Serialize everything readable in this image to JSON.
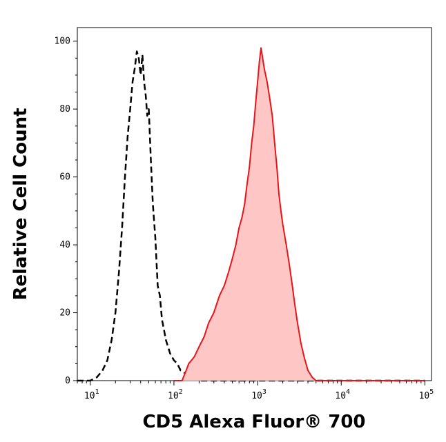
{
  "chart_data": {
    "type": "area",
    "xlabel": "CD5 Alexa Fluor® 700",
    "ylabel": "Relative Cell Count",
    "xscale": "log",
    "xlim": [
      7,
      120000
    ],
    "ylim": [
      0,
      104
    ],
    "x_ticks": [
      {
        "base": "10",
        "exp": "1",
        "value": 10
      },
      {
        "base": "10",
        "exp": "2",
        "value": 100
      },
      {
        "base": "10",
        "exp": "3",
        "value": 1000
      },
      {
        "base": "10",
        "exp": "4",
        "value": 10000
      },
      {
        "base": "10",
        "exp": "5",
        "value": 100000
      }
    ],
    "y_ticks": [
      0,
      20,
      40,
      60,
      80,
      100
    ],
    "grid": false,
    "legend": "none",
    "series": [
      {
        "style": "dashed",
        "color": "#000000",
        "fill": "none",
        "x": [
          7,
          10,
          12,
          14,
          16,
          18,
          20,
          22,
          24,
          26,
          28,
          30,
          32,
          34,
          36,
          38,
          40,
          42,
          44,
          46,
          48,
          50,
          53,
          56,
          60,
          64,
          68,
          72,
          76,
          80,
          90,
          100,
          110,
          120,
          140,
          170,
          200,
          1000,
          10000,
          100000
        ],
        "y": [
          0,
          0,
          1,
          3,
          6,
          12,
          20,
          32,
          45,
          60,
          72,
          80,
          88,
          92,
          97,
          95,
          90,
          96,
          88,
          84,
          78,
          80,
          65,
          52,
          42,
          28,
          25,
          18,
          15,
          12,
          8,
          6,
          5,
          3,
          2,
          1,
          0,
          0,
          0,
          0
        ]
      },
      {
        "style": "solid",
        "color": "#e8141a",
        "fill": "#ffc6c6",
        "x": [
          100,
          125,
          140,
          150,
          175,
          200,
          230,
          260,
          300,
          350,
          400,
          450,
          500,
          550,
          600,
          650,
          700,
          750,
          800,
          850,
          900,
          950,
          1000,
          1050,
          1100,
          1150,
          1200,
          1300,
          1400,
          1500,
          1600,
          1700,
          1800,
          1900,
          2000,
          2200,
          2400,
          2600,
          2800,
          3000,
          3300,
          3600,
          4000,
          4500,
          5000,
          6000,
          100000
        ],
        "y": [
          0,
          0,
          3,
          5,
          7,
          10,
          13,
          17,
          20,
          25,
          28,
          32,
          36,
          40,
          45,
          48,
          52,
          58,
          63,
          70,
          75,
          82,
          88,
          94,
          98,
          95,
          92,
          88,
          83,
          78,
          70,
          63,
          55,
          50,
          46,
          40,
          34,
          28,
          22,
          17,
          11,
          7,
          3,
          1,
          0,
          0,
          0
        ]
      }
    ]
  }
}
